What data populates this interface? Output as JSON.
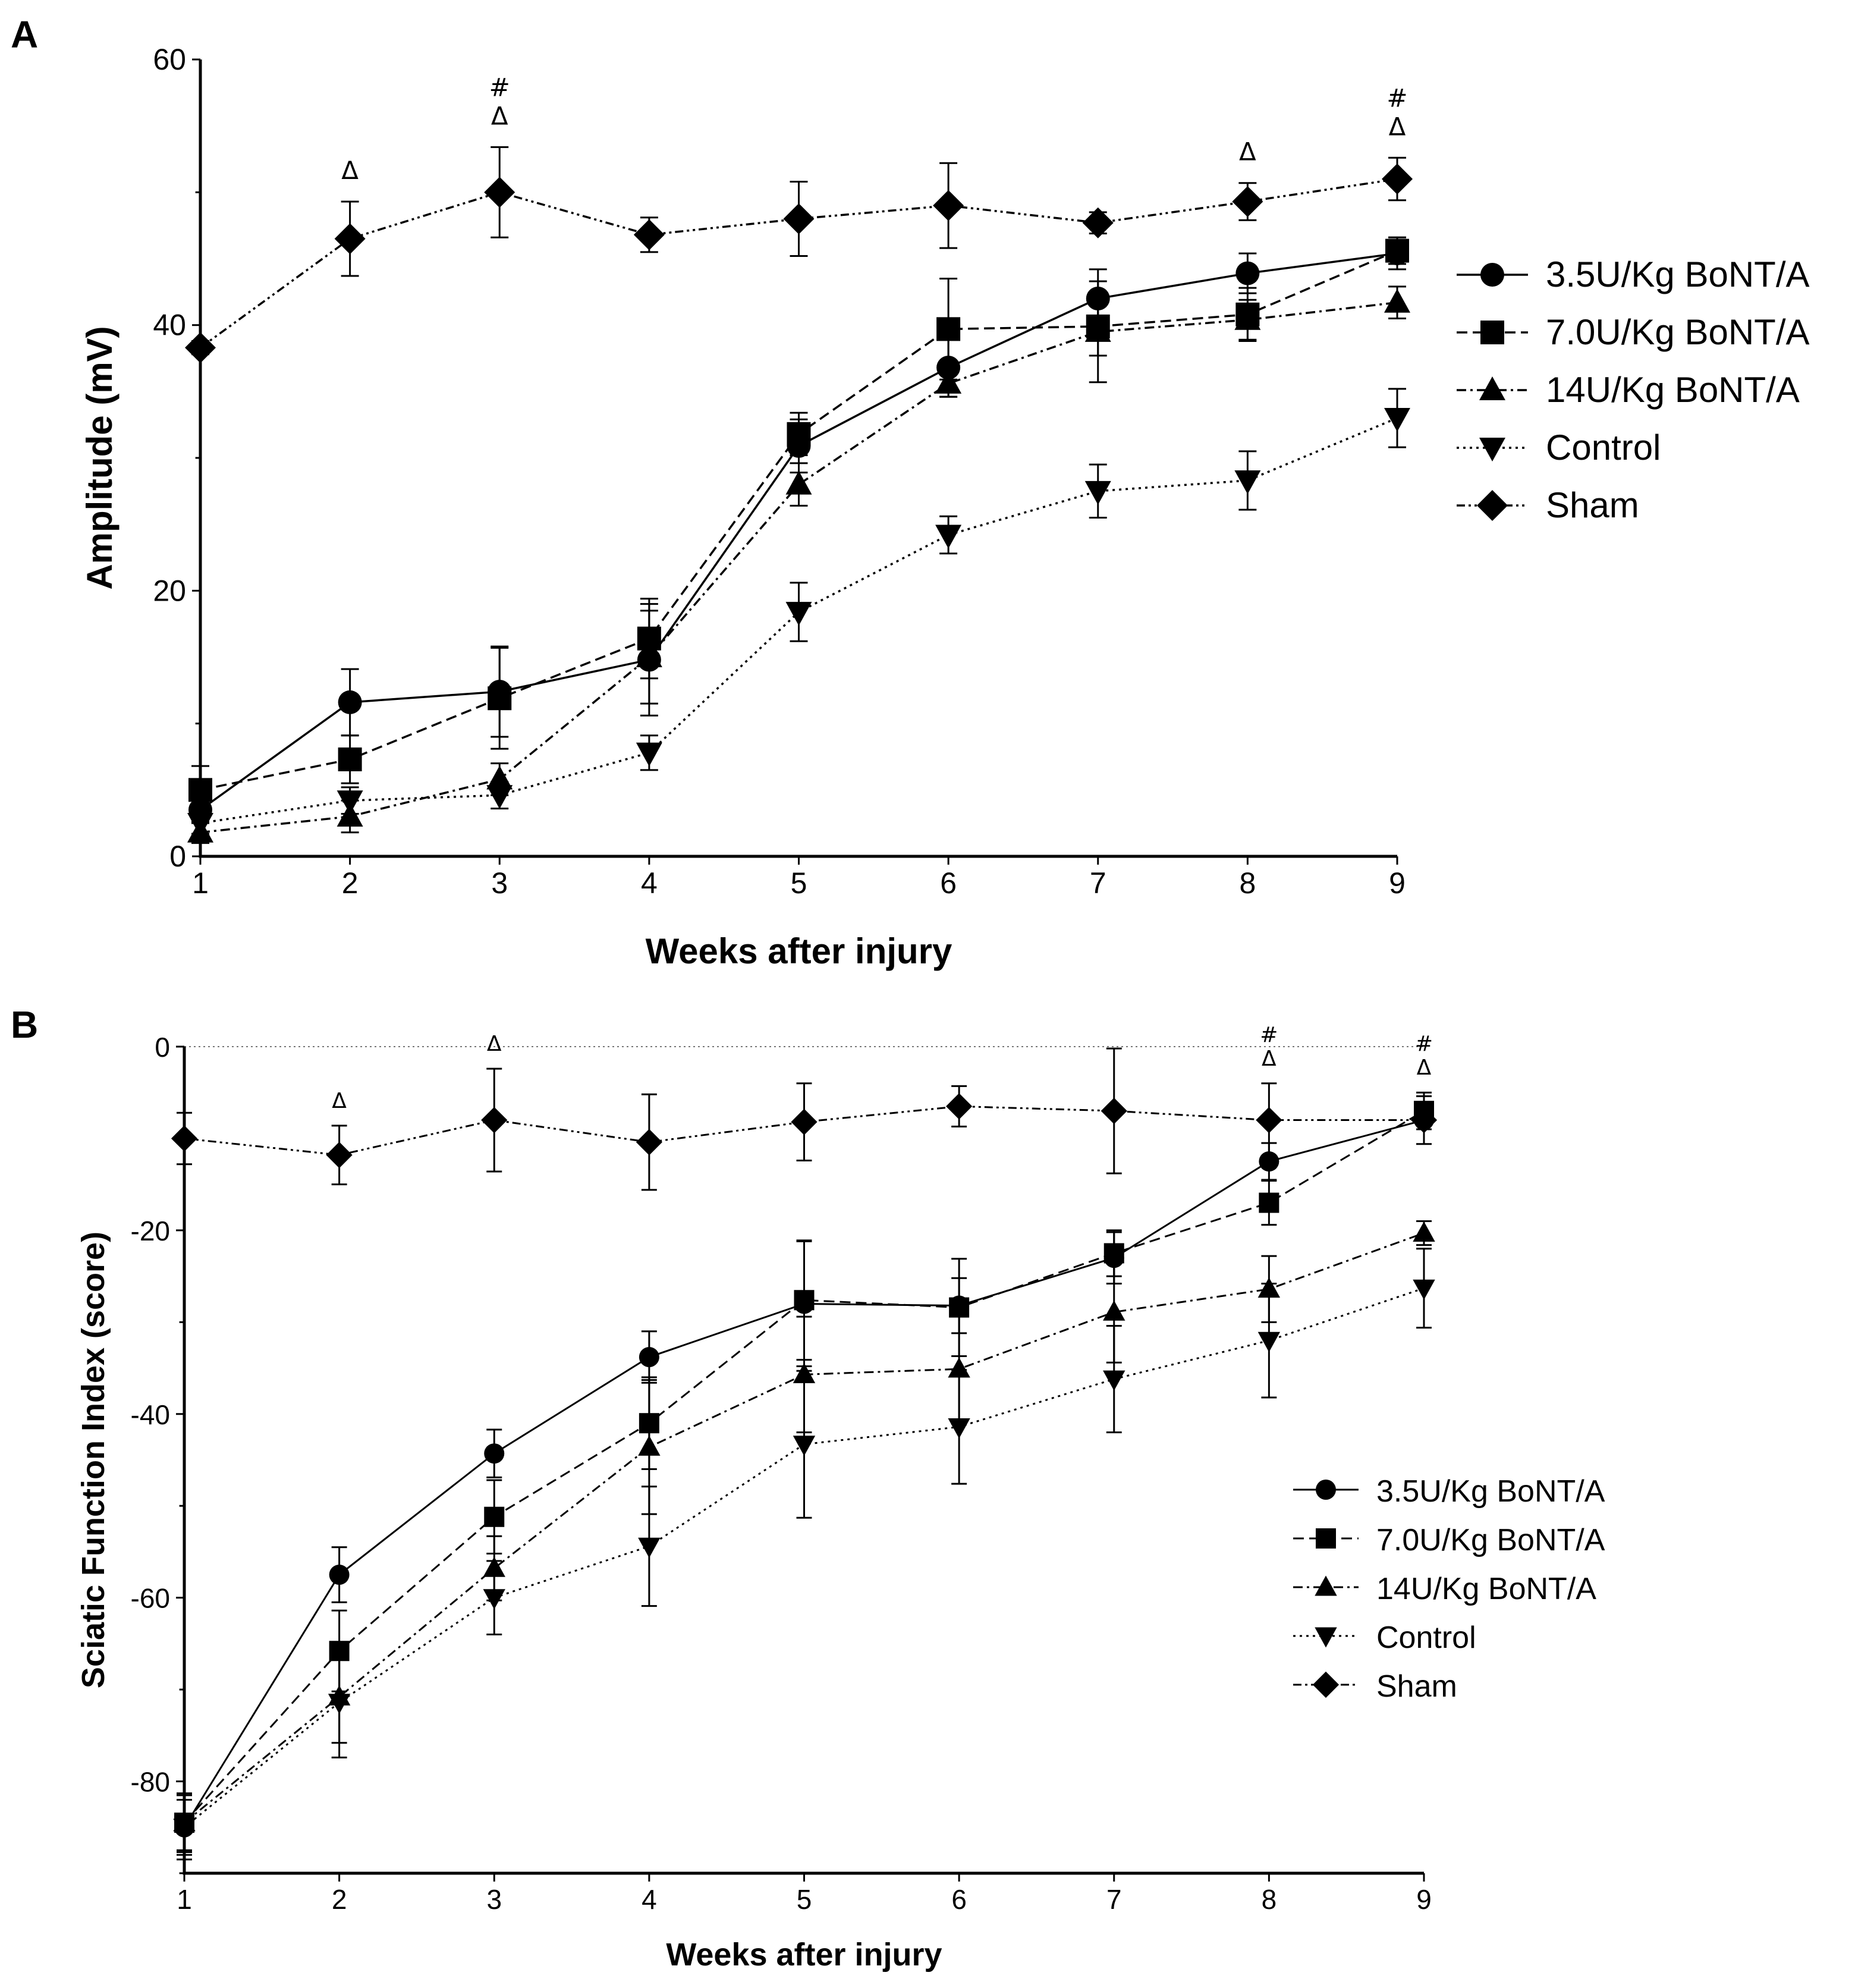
{
  "chart_data": [
    {
      "panel": "A",
      "type": "line",
      "title": "",
      "xlabel": "Weeks after injury",
      "ylabel": "Amplitude (mV)",
      "x": [
        1,
        2,
        3,
        4,
        5,
        6,
        7,
        8,
        9
      ],
      "xlim": [
        1,
        9
      ],
      "ylim": [
        0,
        60
      ],
      "yticks": [
        0,
        20,
        40,
        60
      ],
      "xticks": [
        1,
        2,
        3,
        4,
        5,
        6,
        7,
        8,
        9
      ],
      "legend_position": "right",
      "series": [
        {
          "name": "3.5U/Kg BoNT/A",
          "marker": "circle",
          "dash": "solid",
          "values": [
            3.5,
            11.6,
            12.4,
            14.8,
            30.9,
            36.8,
            42.0,
            43.9,
            45.4
          ],
          "errors": [
            1.0,
            2.5,
            3.4,
            4.2,
            2.0,
            2.2,
            2.2,
            1.5,
            1.2
          ]
        },
        {
          "name": "7.0U/Kg BoNT/A",
          "marker": "square",
          "dash": "dashed",
          "values": [
            5.0,
            7.3,
            11.9,
            16.4,
            31.8,
            39.7,
            39.9,
            40.8,
            45.6
          ],
          "errors": [
            1.8,
            1.8,
            3.8,
            3.0,
            1.6,
            3.8,
            2.2,
            2.0,
            1.0
          ]
        },
        {
          "name": "14U/Kg BoNT/A",
          "marker": "triangle-up",
          "dash": "dashdot",
          "values": [
            1.8,
            3.0,
            5.8,
            15.0,
            28.0,
            35.6,
            39.5,
            40.4,
            41.7
          ],
          "errors": [
            0.8,
            1.2,
            1.2,
            3.5,
            1.6,
            1.0,
            3.8,
            1.5,
            1.2
          ]
        },
        {
          "name": "Control",
          "marker": "triangle-down",
          "dash": "dotted",
          "values": [
            2.5,
            4.2,
            4.6,
            7.8,
            18.4,
            24.2,
            27.5,
            28.3,
            33.0
          ],
          "errors": [
            0.8,
            1.0,
            1.0,
            1.3,
            2.2,
            1.4,
            2.0,
            2.2,
            2.2
          ]
        },
        {
          "name": "Sham",
          "marker": "diamond",
          "dash": "dashdotdot",
          "values": [
            38.3,
            46.5,
            50.0,
            46.8,
            48.0,
            49.0,
            47.7,
            49.3,
            51.0
          ],
          "errors": [
            0.5,
            2.8,
            3.4,
            1.3,
            2.8,
            3.2,
            0.8,
            1.4,
            1.6
          ]
        }
      ],
      "annotations": [
        {
          "x": 2,
          "lines": [
            "Δ"
          ]
        },
        {
          "x": 3,
          "lines": [
            "#",
            "Δ"
          ]
        },
        {
          "x": 8,
          "lines": [
            "Δ"
          ]
        },
        {
          "x": 9,
          "lines": [
            "#",
            "Δ"
          ]
        }
      ]
    },
    {
      "panel": "B",
      "type": "line",
      "title": "",
      "xlabel": "Weeks after injury",
      "ylabel": "Sciatic Function Index (score)",
      "x": [
        1,
        2,
        3,
        4,
        5,
        6,
        7,
        8,
        9
      ],
      "xlim": [
        1,
        9
      ],
      "ylim": [
        -90,
        0
      ],
      "yticks": [
        0,
        -20,
        -40,
        -60,
        -80
      ],
      "xticks": [
        1,
        2,
        3,
        4,
        5,
        6,
        7,
        8,
        9
      ],
      "reference_line_y": 0,
      "legend_position": "lower-right",
      "series": [
        {
          "name": "3.5U/Kg BoNT/A",
          "marker": "circle",
          "dash": "solid",
          "values": [
            -85.0,
            -57.5,
            -44.3,
            -33.8,
            -28.0,
            -28.2,
            -23.0,
            -12.5,
            -8.0
          ],
          "errors": [
            3.0,
            3.0,
            2.6,
            2.8,
            6.8,
            3.0,
            2.8,
            2.0,
            1.0
          ]
        },
        {
          "name": "7.0U/Kg BoNT/A",
          "marker": "square",
          "dash": "dashed",
          "values": [
            -84.5,
            -65.8,
            -51.2,
            -41.0,
            -27.6,
            -28.4,
            -22.5,
            -17.0,
            -7.0
          ],
          "errors": [
            3.0,
            4.4,
            4.0,
            5.0,
            6.5,
            5.3,
            2.5,
            2.4,
            2.0
          ]
        },
        {
          "name": "14U/Kg BoNT/A",
          "marker": "triangle-up",
          "dash": "dashdot",
          "values": [
            -84.5,
            -70.8,
            -56.8,
            -43.6,
            -35.7,
            -35.1,
            -28.9,
            -26.4,
            -20.3
          ],
          "errors": [
            3.2,
            5.0,
            3.5,
            7.3,
            6.3,
            6.0,
            5.5,
            3.6,
            1.3
          ]
        },
        {
          "name": "Control",
          "marker": "triangle-down",
          "dash": "dotted",
          "values": [
            -85.0,
            -71.4,
            -60.0,
            -54.4,
            -43.3,
            -41.4,
            -36.2,
            -32.0,
            -26.3
          ],
          "errors": [
            3.5,
            6.0,
            4.0,
            6.5,
            8.0,
            6.2,
            5.8,
            6.2,
            4.3
          ]
        },
        {
          "name": "Sham",
          "marker": "diamond",
          "dash": "dashdotdot",
          "values": [
            -10.0,
            -11.8,
            -8.0,
            -10.4,
            -8.2,
            -6.5,
            -7.0,
            -8.0,
            -8.0
          ],
          "errors": [
            2.8,
            3.2,
            5.6,
            5.2,
            4.2,
            2.2,
            6.8,
            4.0,
            2.6
          ]
        }
      ],
      "annotations": [
        {
          "x": 2,
          "lines": [
            "Δ"
          ]
        },
        {
          "x": 3,
          "lines": [
            "Δ"
          ]
        },
        {
          "x": 8,
          "lines": [
            "#",
            "Δ"
          ]
        },
        {
          "x": 9,
          "lines": [
            "#",
            "Δ"
          ]
        }
      ]
    }
  ]
}
